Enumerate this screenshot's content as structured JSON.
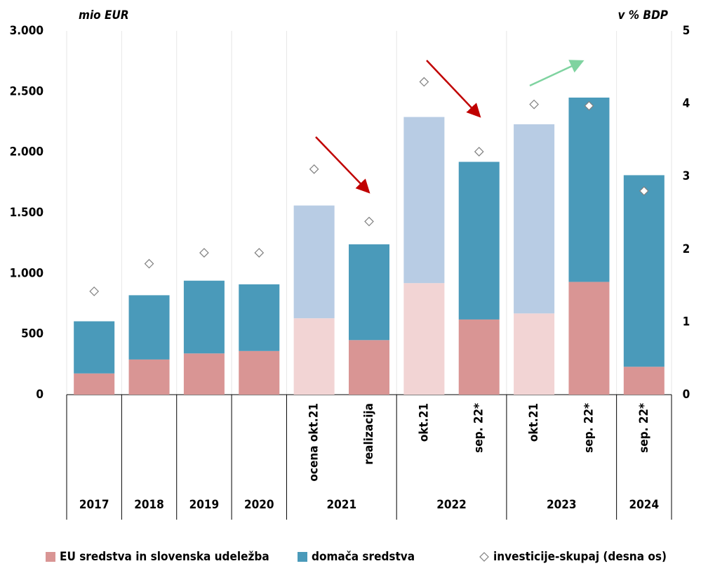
{
  "chart_data": {
    "type": "bar",
    "stacked": true,
    "ylabel": "mio EUR",
    "y2label": "v % BDP",
    "categories": [
      null,
      null,
      null,
      null,
      "ocena okt.21",
      "realizacija",
      "okt.21",
      "sep. 22*",
      "okt.21",
      "sep. 22*",
      "sep. 22*"
    ],
    "groups": [
      {
        "label": "2017",
        "span": 1
      },
      {
        "label": "2018",
        "span": 1
      },
      {
        "label": "2019",
        "span": 1
      },
      {
        "label": "2020",
        "span": 1
      },
      {
        "label": "2021",
        "span": 2
      },
      {
        "label": "2022",
        "span": 2
      },
      {
        "label": "2023",
        "span": 2
      },
      {
        "label": "2024",
        "span": 1
      }
    ],
    "series": [
      {
        "name": "EU sredstva in slovenska udeležba",
        "color": "#d99594",
        "colors": [
          "#d99594",
          "#d99594",
          "#d99594",
          "#d99594",
          "#f2d4d4",
          "#d99594",
          "#f2d4d4",
          "#d99594",
          "#f2d4d4",
          "#d99594",
          "#d99594"
        ],
        "values": [
          175,
          290,
          340,
          360,
          630,
          450,
          920,
          620,
          670,
          930,
          230
        ]
      },
      {
        "name": "domača sredstva",
        "color": "#4a9aba",
        "colors": [
          "#4a9aba",
          "#4a9aba",
          "#4a9aba",
          "#4a9aba",
          "#b8cce4",
          "#4a9aba",
          "#b8cce4",
          "#4a9aba",
          "#b8cce4",
          "#4a9aba",
          "#4a9aba"
        ],
        "values": [
          430,
          530,
          600,
          550,
          930,
          790,
          1370,
          1300,
          1560,
          1520,
          1580
        ]
      },
      {
        "name": "investicije-skupaj (desna os)",
        "type": "marker",
        "axis": "y2",
        "color": "#808080",
        "values": [
          1.42,
          1.8,
          1.95,
          1.95,
          3.1,
          2.38,
          4.3,
          3.34,
          3.99,
          3.97,
          2.8
        ]
      }
    ],
    "ylim": [
      0,
      3000
    ],
    "yticks": [
      0,
      500,
      {
        "value": 1000,
        "label": "1.000"
      },
      {
        "value": 1500,
        "label": "1.500"
      },
      {
        "value": 2000,
        "label": "2.000"
      },
      {
        "value": 2500,
        "label": "2.500"
      },
      {
        "value": 3000,
        "label": "3.000"
      }
    ],
    "y2lim": [
      0,
      5
    ],
    "y2ticks": [
      0,
      1,
      2,
      3,
      4,
      5
    ],
    "grid": true,
    "legend": "bottom"
  }
}
